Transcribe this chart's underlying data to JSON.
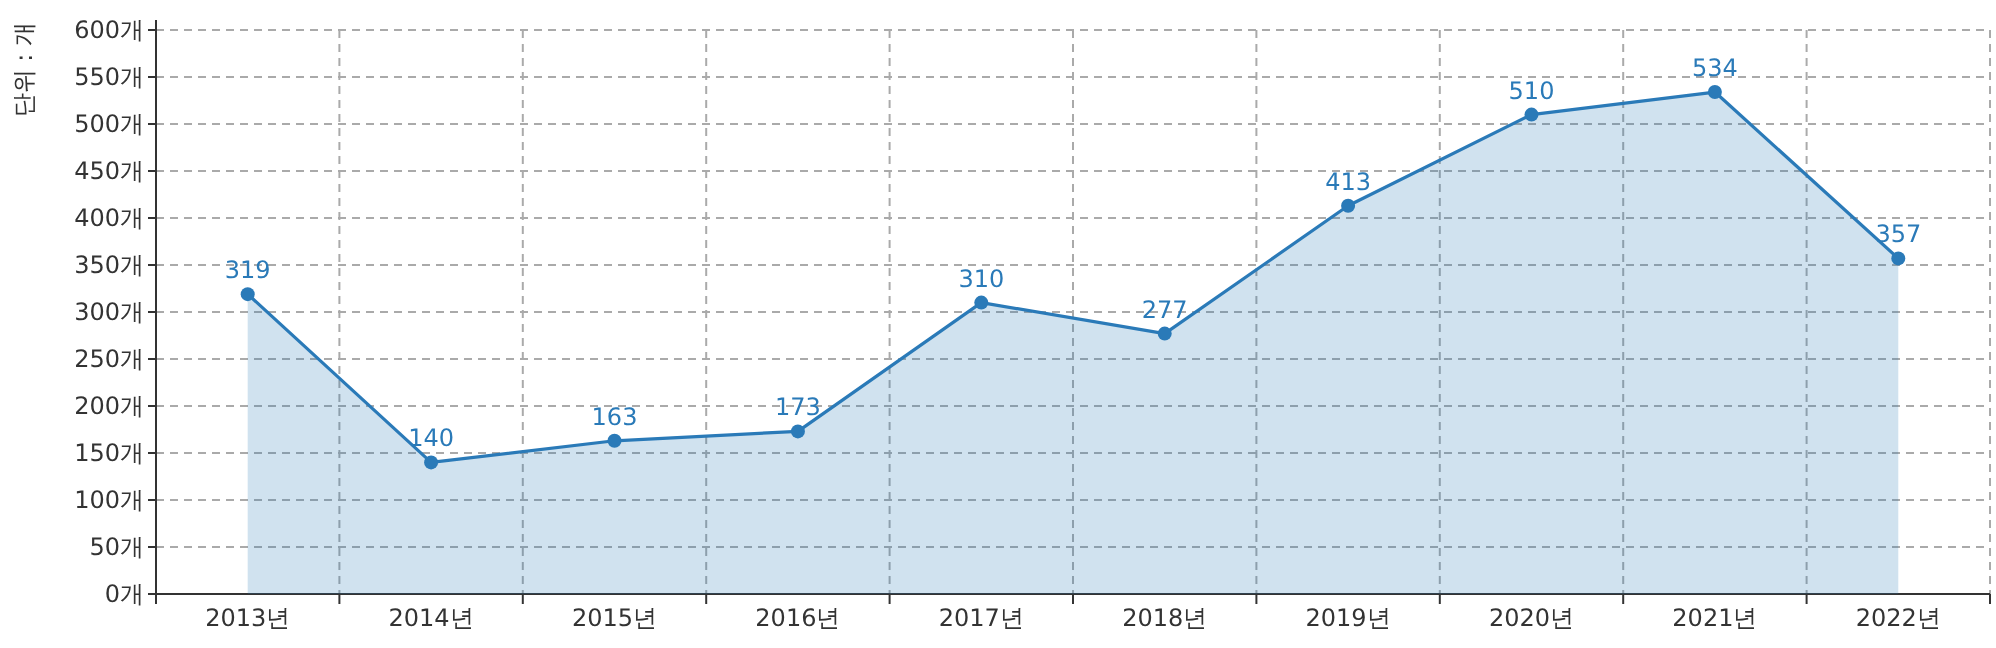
{
  "chart_data": {
    "type": "area",
    "ylabel": "단위 : 개",
    "categories": [
      "2013년",
      "2014년",
      "2015년",
      "2016년",
      "2017년",
      "2018년",
      "2019년",
      "2020년",
      "2021년",
      "2022년"
    ],
    "series": [
      {
        "color": "#2a7ab8",
        "values": [
          319,
          140,
          163,
          173,
          310,
          277,
          413,
          510,
          534,
          357
        ]
      }
    ],
    "ylim": [
      0,
      600
    ],
    "yticks": [
      {
        "value": 0,
        "label": "0개"
      },
      {
        "value": 50,
        "label": "50개"
      },
      {
        "value": 100,
        "label": "100개"
      },
      {
        "value": 150,
        "label": "150개"
      },
      {
        "value": 200,
        "label": "200개"
      },
      {
        "value": 250,
        "label": "250개"
      },
      {
        "value": 300,
        "label": "300개"
      },
      {
        "value": 350,
        "label": "350개"
      },
      {
        "value": 400,
        "label": "400개"
      },
      {
        "value": 450,
        "label": "450개"
      },
      {
        "value": 500,
        "label": "500개"
      },
      {
        "value": 550,
        "label": "550개"
      },
      {
        "value": 600,
        "label": "600개"
      }
    ],
    "grid": true,
    "data_labels": true,
    "marker": "circle"
  }
}
